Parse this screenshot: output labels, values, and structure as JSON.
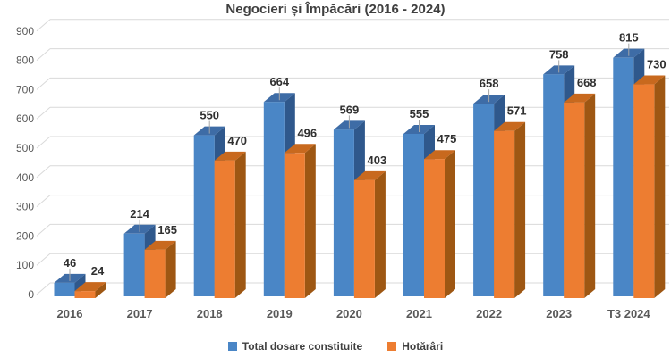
{
  "chart_data": {
    "type": "bar",
    "style": "3d-clustered-column",
    "title": "Negocieri și Împăcări (2016 - 2024)",
    "categories": [
      "2016",
      "2017",
      "2018",
      "2019",
      "2020",
      "2021",
      "2022",
      "2023",
      "T3 2024"
    ],
    "series": [
      {
        "name": "Total dosare constituite",
        "values": [
          46,
          214,
          550,
          664,
          569,
          555,
          658,
          758,
          815
        ],
        "color": "#4a86c6",
        "side_color": "#2f588c",
        "top_color": "#3e6ca6"
      },
      {
        "name": "Hotărâri",
        "values": [
          24,
          165,
          470,
          496,
          403,
          475,
          571,
          668,
          730
        ],
        "color": "#ed7d31",
        "side_color": "#9e5713",
        "top_color": "#c8691e"
      }
    ],
    "xlabel": "",
    "ylabel": "",
    "ylim": [
      0,
      900
    ],
    "yticks": [
      0,
      100,
      200,
      300,
      400,
      500,
      600,
      700,
      800,
      900
    ],
    "grid": true,
    "gridline_color": "#d9d9d9",
    "axis_text_color": "#595959",
    "data_label_color": "#303030",
    "leader_line_color": "#a6a6a6",
    "data_labels": true,
    "legend_position": "bottom"
  }
}
